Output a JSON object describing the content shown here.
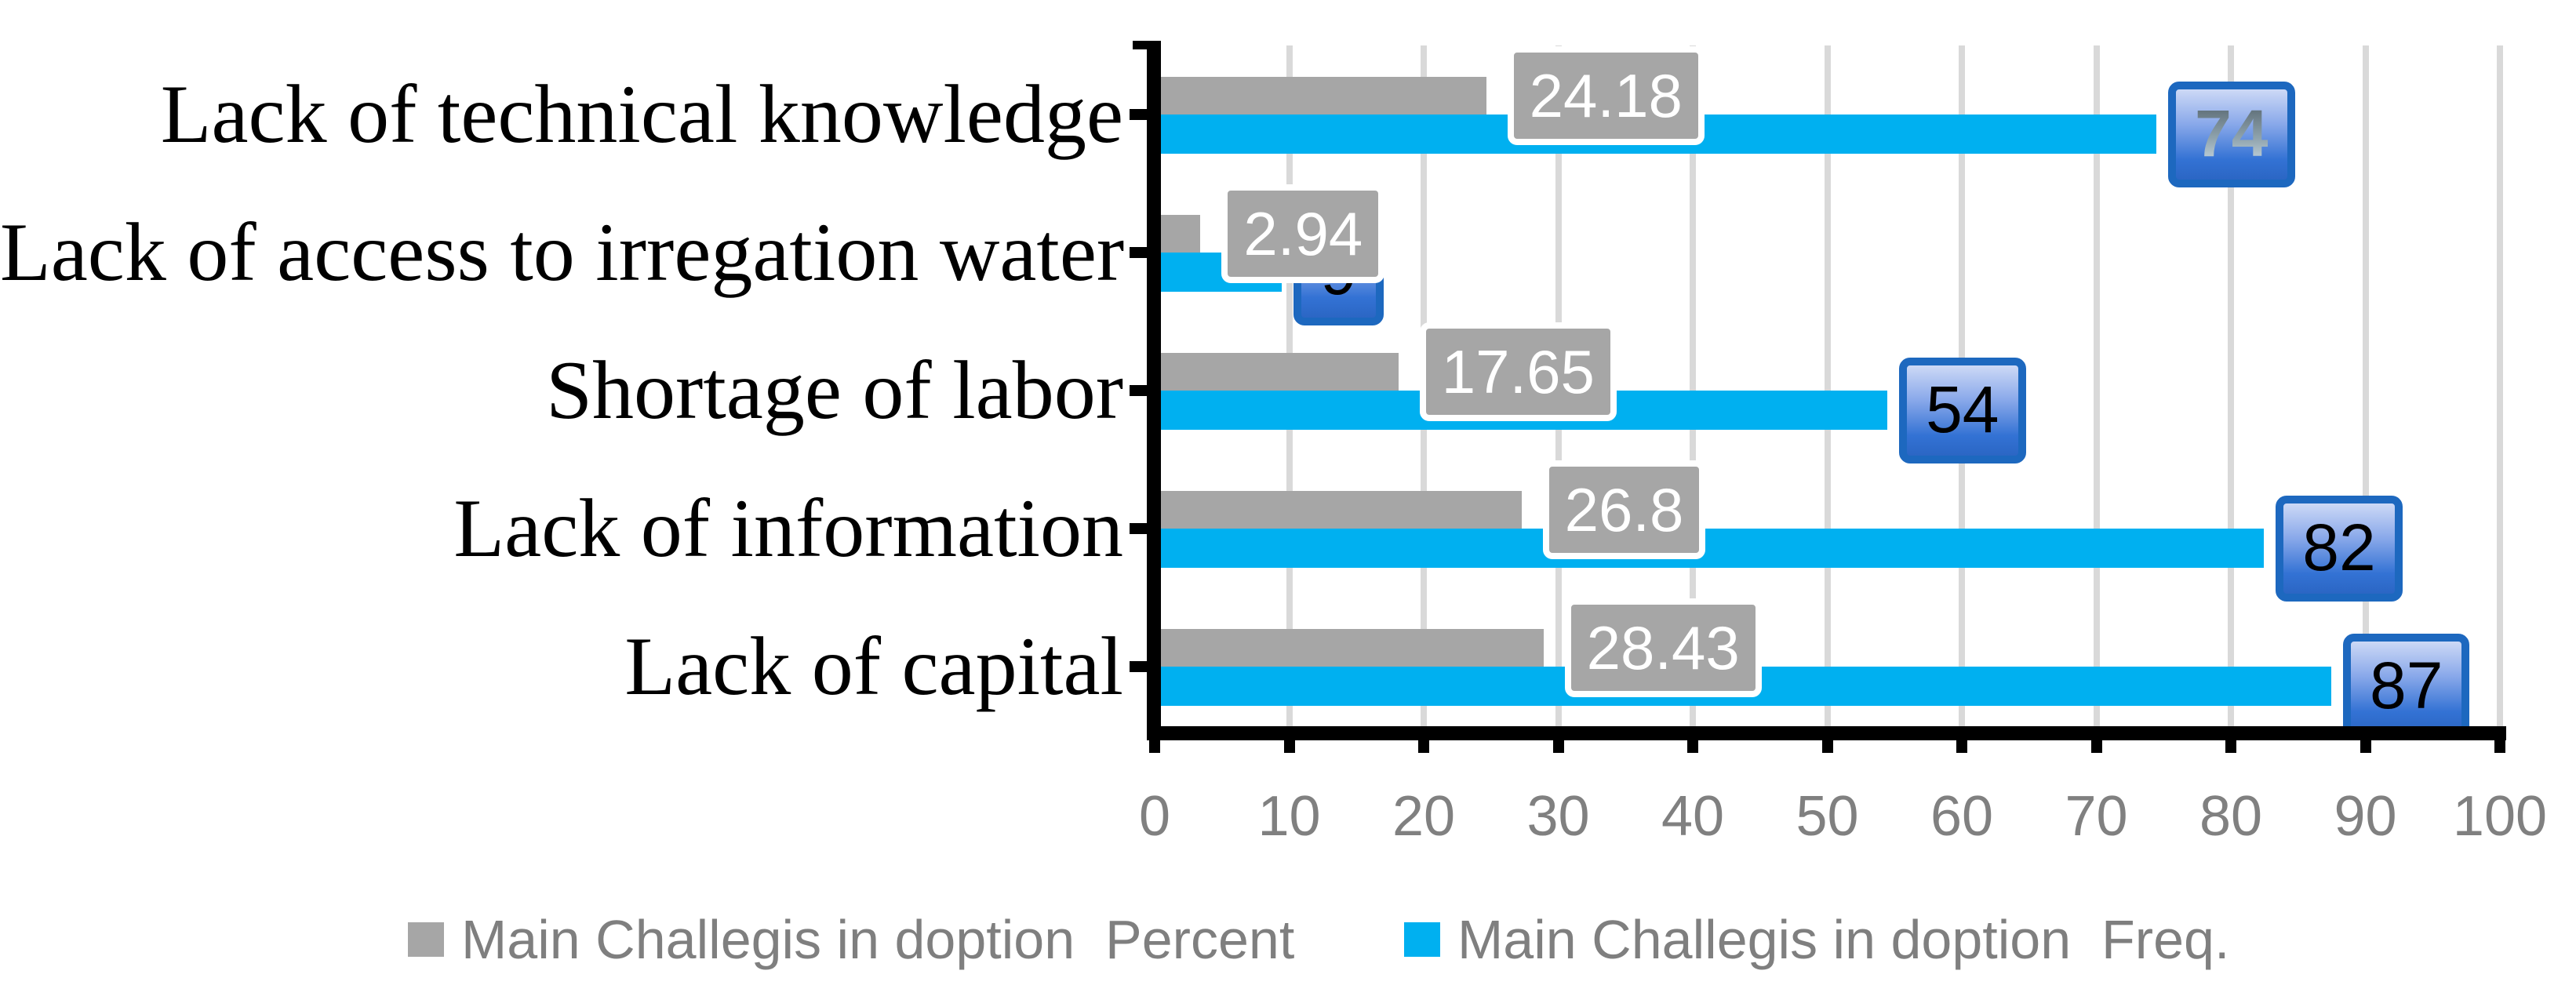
{
  "chart_data": {
    "type": "bar",
    "orientation": "horizontal",
    "title": "",
    "categories": [
      "Lack of technical knowledge",
      "Lack of access to irregation water",
      "Shortage of labor",
      "Lack of information",
      "Lack of capital"
    ],
    "series": [
      {
        "name": "Main Challegis in doption  Percent",
        "color": "#a6a6a6",
        "values": [
          24.18,
          2.94,
          17.65,
          26.8,
          28.43
        ],
        "data_labels": [
          "24.18",
          "2.94",
          "17.65",
          "26.8",
          "28.43"
        ],
        "label_style": "gray-box"
      },
      {
        "name": "Main Challegis in doption  Freq.",
        "color": "#00b0f0",
        "values": [
          74,
          9,
          54,
          82,
          87
        ],
        "data_labels": [
          "74",
          "9",
          "54",
          "82",
          "87"
        ],
        "label_style": "blue-box",
        "label_text_styles": [
          "gradient",
          "plain",
          "plain",
          "plain",
          "plain"
        ]
      }
    ],
    "xlabel": "",
    "ylabel": "",
    "xlim": [
      0,
      100
    ],
    "x_ticks": [
      "0",
      "10",
      "20",
      "30",
      "40",
      "50",
      "60",
      "70",
      "80",
      "90",
      "100"
    ],
    "grid": true,
    "legend_position": "bottom"
  },
  "legend": {
    "items": [
      {
        "label": "Main Challegis in doption  Percent",
        "color": "#a6a6a6"
      },
      {
        "label": "Main Challegis in doption  Freq.",
        "color": "#00b0f0"
      }
    ]
  },
  "colors": {
    "freq_bar": "#00b0f0",
    "percent_bar": "#a6a6a6",
    "gridline": "#d9d9d9",
    "axis": "#000000",
    "tick_label": "#808080",
    "legend_text": "#7f7f7f",
    "gray_label_bg": "#a6a6a6",
    "gray_label_text": "#ffffff",
    "blue_box_border": "#1d68bf",
    "blue_box_text": "#000000"
  }
}
